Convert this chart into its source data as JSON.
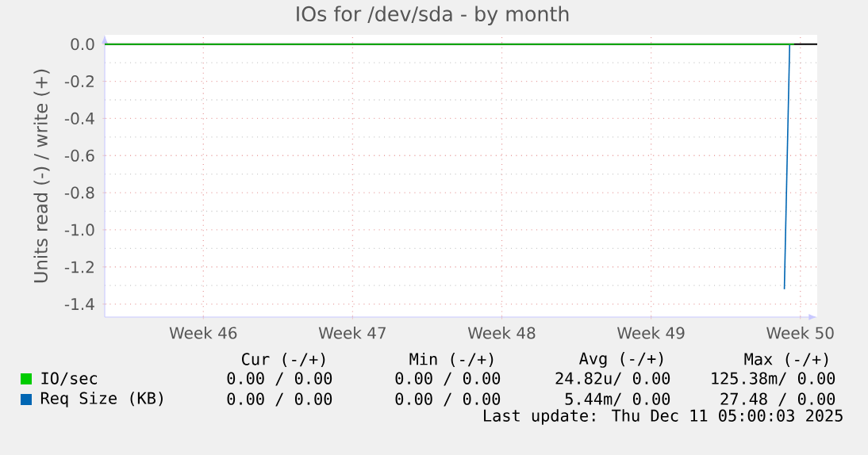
{
  "chart_data": {
    "type": "line",
    "title": "IOs for /dev/sda - by month",
    "ylabel": "Units read (-) / write (+)",
    "xlim": [
      "2025-11-08T21:00",
      "2025-12-12T07:00"
    ],
    "xticks": [
      {
        "value": "2025-11-13T12:00",
        "label": "Week 46"
      },
      {
        "value": "2025-11-20T12:00",
        "label": "Week 47"
      },
      {
        "value": "2025-11-27T12:00",
        "label": "Week 48"
      },
      {
        "value": "2025-12-04T12:00",
        "label": "Week 49"
      },
      {
        "value": "2025-12-11T12:00",
        "label": "Week 50"
      }
    ],
    "ylim": [
      -1.47,
      0.05
    ],
    "yticks": [
      {
        "value": -1.4,
        "label": "-1.4"
      },
      {
        "value": -1.2,
        "label": "-1.2"
      },
      {
        "value": -1.0,
        "label": "-1.0"
      },
      {
        "value": -0.8,
        "label": "-0.8"
      },
      {
        "value": -0.6,
        "label": "-0.6"
      },
      {
        "value": -0.4,
        "label": "-0.4"
      },
      {
        "value": -0.2,
        "label": "-0.2"
      },
      {
        "value": 0,
        "label": "0.0"
      }
    ],
    "grid": true,
    "legend": "bottom",
    "ref_lines": [
      {
        "axis": "y",
        "value": 0,
        "color": "#000000"
      }
    ],
    "series": [
      {
        "name": "IO/sec",
        "color": "#00cc00",
        "x": [
          "2025-11-08T21:00",
          "2025-12-11T05:00"
        ],
        "values": [
          0,
          0
        ]
      },
      {
        "name": "Req Size (KB)",
        "color": "#0066b3",
        "x": [
          "2025-12-10T18:00",
          "2025-12-11T00:00"
        ],
        "values": [
          -1.32,
          0
        ]
      }
    ],
    "annotations": [
      "Cur (-/+)",
      "Min (-/+)",
      "Avg (-/+)",
      "Max (-/+)",
      "0.00 /  0.00",
      "0.00 /  0.00",
      "24.82u/  0.00",
      "125.38m/  0.00",
      "0.00 /  0.00",
      "0.00 /  0.00",
      "5.44m/  0.00",
      "27.48 /  0.00",
      "Last update: Thu Dec 11 05:00:03 2025"
    ]
  }
}
